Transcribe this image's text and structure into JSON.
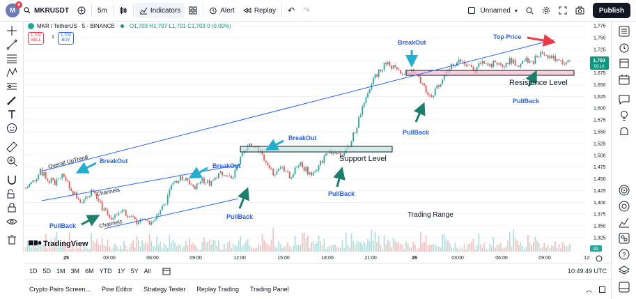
{
  "topbar": {
    "avatar_letter": "M",
    "avatar_badge": "9",
    "symbol": "MKRUSDT",
    "interval": "5m",
    "indicators_label": "Indicators",
    "alert_label": "Alert",
    "replay_label": "Replay",
    "layout_name": "Unnamed",
    "publish_label": "Publish"
  },
  "legend": {
    "title": "MKR / TetherUS · 5 · BINANCE",
    "ohlc": "O1,703 H1,707 L1,701 C1,703 0 (0.00%)",
    "sell_price": "1,702",
    "sell_label": "SELL",
    "spread": "1",
    "buy_price": "1,703",
    "buy_label": "BUY"
  },
  "chart_data": {
    "type": "candlestick",
    "y_ticks": [
      "1,775",
      "1,750",
      "1,725",
      "1,700",
      "1,675",
      "1,650",
      "1,625",
      "1,600",
      "1,575",
      "1,550",
      "1,525",
      "1,500",
      "1,475",
      "1,450",
      "1,425",
      "1,400",
      "1,375",
      "1,350",
      "1,325"
    ],
    "ylim": [
      1312,
      1780
    ],
    "x_ticks": [
      "25",
      "03:00",
      "06:00",
      "09:00",
      "12:00",
      "15:00",
      "18:00",
      "21:00",
      "26",
      "03:00",
      "06:00",
      "09:00",
      "12:"
    ],
    "current_price": "1,703",
    "countdown": "00:10",
    "volume_label": "49",
    "close_path": [
      1430,
      1445,
      1465,
      1450,
      1440,
      1458,
      1432,
      1410,
      1402,
      1428,
      1398,
      1375,
      1368,
      1385,
      1372,
      1358,
      1365,
      1352,
      1380,
      1400,
      1440,
      1455,
      1445,
      1432,
      1448,
      1440,
      1455,
      1465,
      1448,
      1485,
      1515,
      1522,
      1508,
      1470,
      1462,
      1475,
      1450,
      1485,
      1470,
      1458,
      1482,
      1500,
      1510,
      1498,
      1520,
      1560,
      1615,
      1650,
      1680,
      1695,
      1688,
      1670,
      1680,
      1672,
      1650,
      1625,
      1645,
      1672,
      1692,
      1700,
      1690,
      1680,
      1695,
      1688,
      1700,
      1692,
      1702,
      1694,
      1705,
      1700,
      1720,
      1712,
      1705,
      1695,
      1703
    ],
    "annotations": {
      "overall_uptrend": "Overall UpTrend",
      "channels_1": "Channels",
      "channels_2": "Channels",
      "breakout_1": "BreakOut",
      "breakout_2": "BreakOut",
      "breakout_3": "BreakOut",
      "breakout_4": "BreakOut",
      "pullback_1": "PullBack",
      "pullback_2": "PullBack",
      "pullback_3": "PullBack",
      "pullback_4": "PullBack",
      "pullback_5": "PullBack",
      "support_level": "Support Level",
      "resistance_level": "Resistance Level",
      "top_price": "Top Price",
      "trading_range": "Trading Range"
    },
    "watermark": "TradingView",
    "colors": {
      "up": "#26a69a",
      "down": "#ef5350",
      "trendline": "#2962ff",
      "arrow_blue": "#22aed1",
      "arrow_green": "#1b7f6b",
      "arrow_red": "#f23645"
    }
  },
  "bottombar": {
    "ranges": [
      "1D",
      "5D",
      "1M",
      "3M",
      "6M",
      "YTD",
      "1Y",
      "5Y",
      "All"
    ],
    "clock": "10:49:49 UTC"
  },
  "panels": [
    "Crypto Pairs Screen...",
    "Pine Editor",
    "Strategy Tester",
    "Replay Trading",
    "Trading Panel"
  ]
}
